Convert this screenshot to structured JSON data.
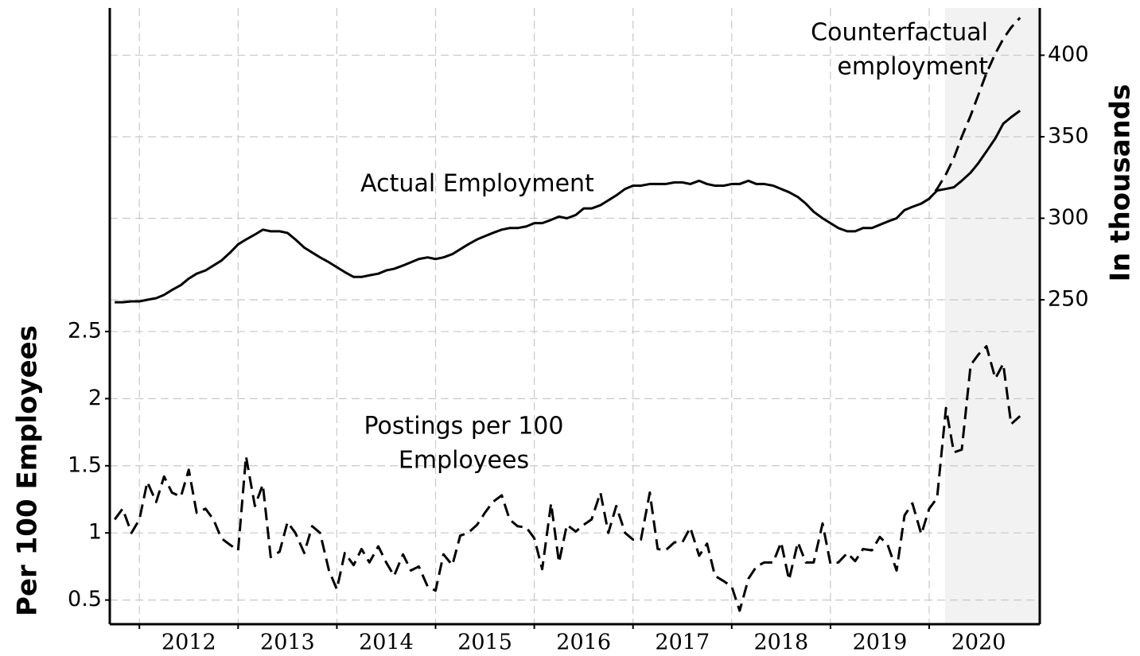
{
  "chart_data": {
    "type": "line",
    "xlabel": null,
    "ylabel": "Per 100 Employees",
    "y2label": "In thousands",
    "annotations": [
      {
        "lines": [
          "Actual Employment"
        ]
      },
      {
        "lines": [
          "Postings per 100",
          "Employees"
        ]
      },
      {
        "lines": [
          "Counterfactual",
          "employment"
        ]
      }
    ],
    "x": [
      2011.75,
      2011.83,
      2011.92,
      2012.0,
      2012.08,
      2012.17,
      2012.25,
      2012.33,
      2012.42,
      2012.5,
      2012.58,
      2012.67,
      2012.75,
      2012.83,
      2012.92,
      2013.0,
      2013.08,
      2013.17,
      2013.25,
      2013.33,
      2013.42,
      2013.5,
      2013.58,
      2013.67,
      2013.75,
      2013.83,
      2013.92,
      2014.0,
      2014.08,
      2014.17,
      2014.25,
      2014.33,
      2014.42,
      2014.5,
      2014.58,
      2014.67,
      2014.75,
      2014.83,
      2014.92,
      2015.0,
      2015.08,
      2015.17,
      2015.25,
      2015.33,
      2015.42,
      2015.5,
      2015.58,
      2015.67,
      2015.75,
      2015.83,
      2015.92,
      2016.0,
      2016.08,
      2016.17,
      2016.25,
      2016.33,
      2016.42,
      2016.5,
      2016.58,
      2016.67,
      2016.75,
      2016.83,
      2016.92,
      2017.0,
      2017.08,
      2017.17,
      2017.25,
      2017.33,
      2017.42,
      2017.5,
      2017.58,
      2017.67,
      2017.75,
      2017.83,
      2017.92,
      2018.0,
      2018.08,
      2018.17,
      2018.25,
      2018.33,
      2018.42,
      2018.5,
      2018.58,
      2018.67,
      2018.75,
      2018.83,
      2018.92,
      2019.0,
      2019.08,
      2019.17,
      2019.25,
      2019.33,
      2019.42,
      2019.5,
      2019.58,
      2019.67,
      2019.75,
      2019.83,
      2019.92,
      2020.0,
      2020.08,
      2020.17,
      2020.25,
      2020.33,
      2020.42,
      2020.5,
      2020.58,
      2020.67,
      2020.75,
      2020.83,
      2020.92
    ],
    "series": [
      {
        "name": "Postings per 100 Employees",
        "color": "#000000",
        "dash": true,
        "axis": "y",
        "values": [
          1.1,
          1.18,
          1.0,
          1.1,
          1.38,
          1.23,
          1.42,
          1.3,
          1.27,
          1.47,
          1.15,
          1.18,
          1.1,
          0.96,
          0.91,
          0.87,
          1.57,
          1.2,
          1.36,
          0.82,
          0.86,
          1.08,
          1.0,
          0.85,
          1.05,
          1.0,
          0.72,
          0.58,
          0.85,
          0.76,
          0.88,
          0.78,
          0.9,
          0.78,
          0.68,
          0.84,
          0.72,
          0.75,
          0.6,
          0.57,
          0.84,
          0.76,
          0.98,
          1.0,
          1.06,
          1.15,
          1.23,
          1.28,
          1.1,
          1.05,
          1.04,
          0.96,
          0.73,
          1.22,
          0.78,
          1.06,
          1.01,
          1.06,
          1.1,
          1.3,
          1.0,
          1.2,
          1.0,
          0.95,
          0.95,
          1.3,
          0.88,
          0.87,
          0.93,
          0.93,
          1.04,
          0.83,
          0.92,
          0.68,
          0.64,
          0.6,
          0.42,
          0.66,
          0.75,
          0.78,
          0.78,
          0.93,
          0.65,
          0.93,
          0.78,
          0.78,
          1.07,
          0.77,
          0.78,
          0.85,
          0.79,
          0.88,
          0.87,
          0.97,
          0.91,
          0.72,
          1.13,
          1.22,
          0.99,
          1.18,
          1.26,
          1.93,
          1.6,
          1.62,
          2.25,
          2.33,
          2.39,
          2.15,
          2.26,
          1.81,
          1.87
        ]
      },
      {
        "name": "Actual Employment",
        "color": "#000000",
        "dash": false,
        "axis": "y2",
        "values": [
          248.5,
          248.5,
          249,
          249,
          250,
          251,
          253,
          256,
          259,
          263,
          266,
          268,
          271,
          274,
          279,
          284,
          287,
          290,
          293,
          292,
          292,
          291,
          287,
          282,
          279,
          276,
          273,
          270,
          267,
          264,
          264,
          265,
          266,
          268,
          269,
          271,
          273,
          275,
          276,
          275,
          276,
          278,
          281,
          284,
          287,
          289,
          291,
          293,
          294,
          294,
          295,
          297,
          297,
          299,
          301,
          300,
          302,
          306,
          306,
          308,
          311,
          314,
          318,
          320,
          320,
          321,
          321,
          321,
          322,
          322,
          321,
          323,
          321,
          320,
          320,
          321,
          321,
          323,
          321,
          321,
          320,
          318,
          316,
          313,
          309,
          304,
          300,
          297,
          294,
          292,
          292,
          294,
          294,
          296,
          298,
          300,
          305,
          307,
          309,
          312,
          317,
          318,
          319,
          323,
          328,
          334,
          341,
          349,
          358,
          362,
          366
        ]
      },
      {
        "name": "Counterfactual employment",
        "color": "#000000",
        "dash": true,
        "axis": "y2",
        "values": [
          null,
          null,
          null,
          null,
          null,
          null,
          null,
          null,
          null,
          null,
          null,
          null,
          null,
          null,
          null,
          null,
          null,
          null,
          null,
          null,
          null,
          null,
          null,
          null,
          null,
          null,
          null,
          null,
          null,
          null,
          null,
          null,
          null,
          null,
          null,
          null,
          null,
          null,
          null,
          null,
          null,
          null,
          null,
          null,
          null,
          null,
          null,
          null,
          null,
          null,
          null,
          null,
          null,
          null,
          null,
          null,
          null,
          null,
          null,
          null,
          null,
          null,
          null,
          null,
          null,
          null,
          null,
          null,
          null,
          null,
          null,
          null,
          null,
          null,
          null,
          null,
          null,
          null,
          null,
          null,
          null,
          null,
          null,
          null,
          null,
          null,
          null,
          null,
          null,
          null,
          null,
          null,
          null,
          null,
          null,
          null,
          null,
          null,
          309,
          312,
          318,
          327,
          337,
          350,
          363,
          376,
          389,
          401,
          410,
          417,
          423
        ]
      }
    ],
    "xlim": [
      2011.7,
      2021.12
    ],
    "xticks": [
      2012,
      2013,
      2014,
      2015,
      2016,
      2017,
      2018,
      2019,
      2020
    ],
    "ylim": [
      0.32,
      4.91
    ],
    "yticks": [
      0.5,
      1.0,
      1.5,
      2.0,
      2.5
    ],
    "y2lim": [
      51,
      429
    ],
    "y2ticks": [
      250,
      300,
      350,
      400
    ],
    "highlight_xlim": [
      2020.16,
      2021.12
    ],
    "highlight_color": "#f2f2f2",
    "grid": true
  }
}
